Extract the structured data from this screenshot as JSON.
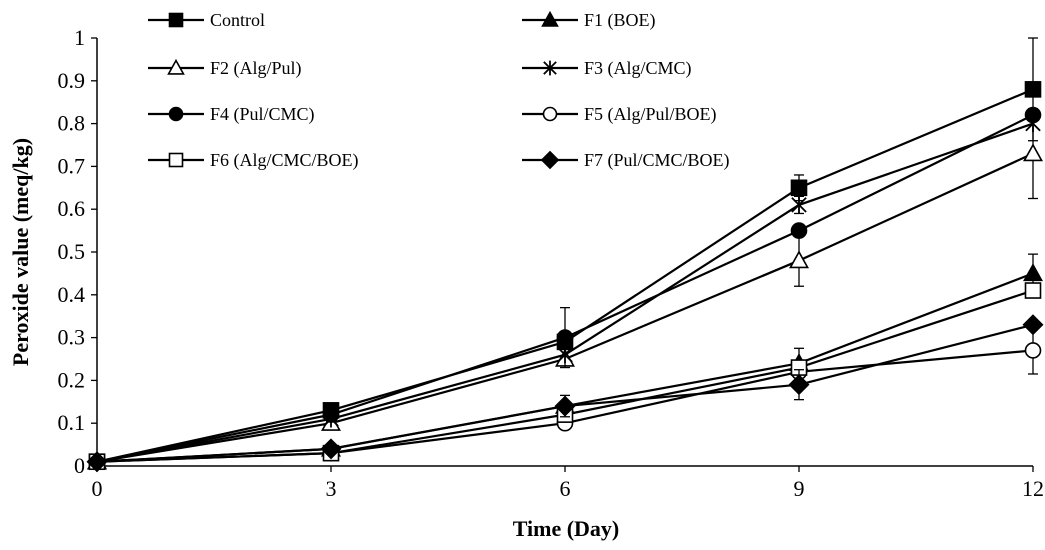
{
  "chart_data": {
    "type": "line",
    "title": "",
    "xlabel": "Time (Day)",
    "ylabel": "Peroxide value (meq/kg)",
    "x": [
      0,
      3,
      6,
      9,
      12
    ],
    "x_ticks": [
      "0",
      "3",
      "6",
      "9",
      "12"
    ],
    "y_ticks": [
      "0",
      "0.1",
      "0.2",
      "0.3",
      "0.4",
      "0.5",
      "0.6",
      "0.7",
      "0.8",
      "0.9",
      "1"
    ],
    "xlim": [
      0,
      12
    ],
    "ylim": [
      0,
      1
    ],
    "grid": false,
    "legend_position": "top",
    "series": [
      {
        "name": "Control",
        "marker": "square-filled",
        "values": [
          0.01,
          0.13,
          0.29,
          0.65,
          0.88
        ],
        "errors": [
          0,
          0,
          0,
          0.03,
          0.12
        ]
      },
      {
        "name": "F1 (BOE)",
        "marker": "triangle-filled",
        "values": [
          0.01,
          0.04,
          0.14,
          0.24,
          0.45
        ],
        "errors": [
          0,
          0,
          0,
          0,
          0.045
        ]
      },
      {
        "name": "F2 (Alg/Pul)",
        "marker": "triangle-open",
        "values": [
          0.01,
          0.1,
          0.25,
          0.48,
          0.73
        ],
        "errors": [
          0,
          0,
          0,
          0.06,
          0.105
        ]
      },
      {
        "name": "F3 (Alg/CMC)",
        "marker": "star",
        "values": [
          0.01,
          0.11,
          0.26,
          0.61,
          0.8
        ],
        "errors": [
          0,
          0,
          0,
          0.02,
          0
        ]
      },
      {
        "name": "F4 (Pul/CMC)",
        "marker": "circle-filled",
        "values": [
          0.01,
          0.12,
          0.3,
          0.55,
          0.82
        ],
        "errors": [
          0,
          0,
          0.07,
          0,
          0
        ]
      },
      {
        "name": "F5 (Alg/Pul/BOE)",
        "marker": "circle-open",
        "values": [
          0.01,
          0.03,
          0.1,
          0.22,
          0.27
        ],
        "errors": [
          0,
          0,
          0,
          0,
          0.055
        ]
      },
      {
        "name": "F6 (Alg/CMC/BOE)",
        "marker": "square-open",
        "values": [
          0.01,
          0.03,
          0.12,
          0.23,
          0.41
        ],
        "errors": [
          0,
          0,
          0,
          0.045,
          0
        ]
      },
      {
        "name": "F7 (Pul/CMC/BOE)",
        "marker": "diamond-filled",
        "values": [
          0.01,
          0.04,
          0.14,
          0.19,
          0.33
        ],
        "errors": [
          0,
          0,
          0.025,
          0.035,
          0
        ]
      }
    ]
  }
}
